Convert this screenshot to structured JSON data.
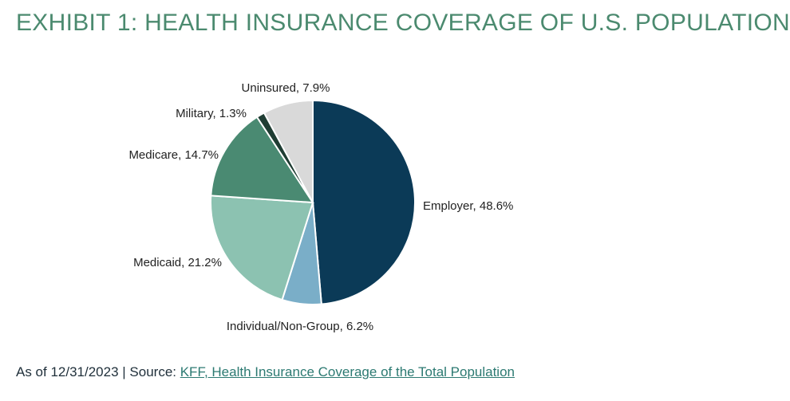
{
  "page": {
    "title": "EXHIBIT 1: HEALTH INSURANCE COVERAGE OF U.S. POPULATION",
    "footer_prefix": "As of 12/31/2023 | Source: ",
    "footer_link": "KFF, Health Insurance Coverage of the Total Population"
  },
  "chart_data": {
    "type": "pie",
    "title": "EXHIBIT 1: HEALTH INSURANCE COVERAGE OF U.S. POPULATION",
    "categories": [
      "Employer",
      "Individual/Non-Group",
      "Medicaid",
      "Medicare",
      "Military",
      "Uninsured"
    ],
    "values": [
      48.6,
      6.2,
      21.2,
      14.7,
      1.3,
      7.9
    ],
    "labels": [
      "Employer, 48.6%",
      "Individual/Non-Group, 6.2%",
      "Medicaid, 21.2%",
      "Medicare, 14.7%",
      "Military, 1.3%",
      "Uninsured, 7.9%"
    ],
    "colors": [
      "#0b3a57",
      "#7aaec8",
      "#8cc2b1",
      "#4a8a72",
      "#1f3d33",
      "#d9d9d9"
    ],
    "start_angle": "12 o'clock",
    "direction": "clockwise",
    "legend": "none (direct labels)",
    "grid": false
  }
}
